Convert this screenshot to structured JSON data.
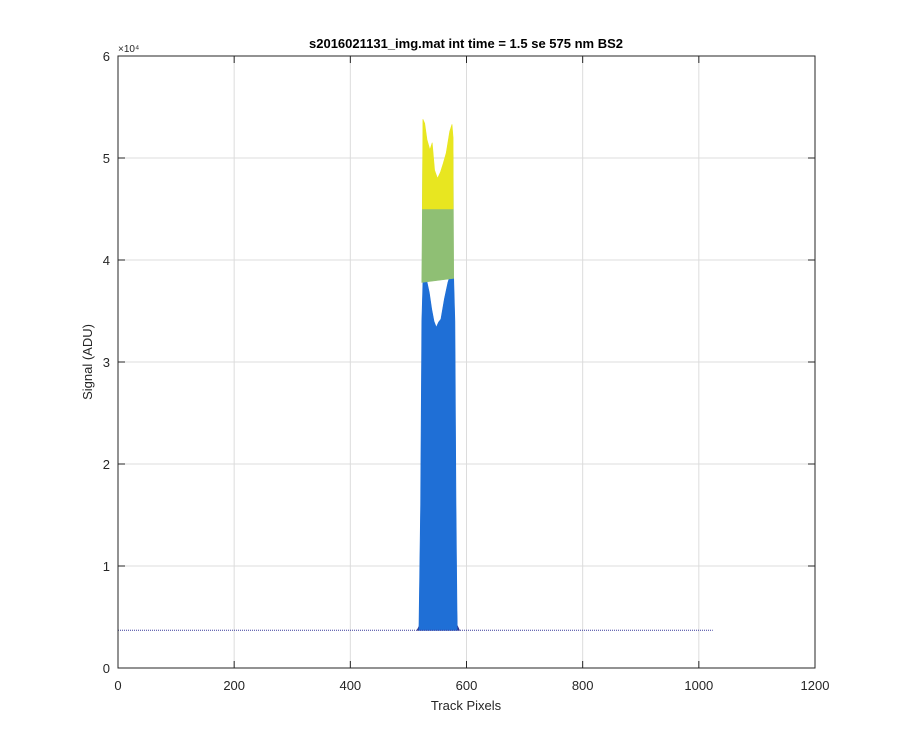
{
  "chart_data": {
    "type": "area",
    "title": "s2016021131_img.mat int time = 1.5 se  575 nm BS2",
    "xlabel": "Track Pixels",
    "ylabel": "Signal (ADU)",
    "y_exponent_label": "×10⁴",
    "xlim": [
      0,
      1200
    ],
    "ylim": [
      0,
      60000
    ],
    "xticks": [
      0,
      200,
      400,
      600,
      800,
      1000,
      1200
    ],
    "yticks": [
      0,
      1,
      2,
      3,
      4,
      5,
      6
    ],
    "ytick_scale": 10000,
    "grid": true,
    "baseline": {
      "value": 3700,
      "x_start": 0,
      "x_end": 1024,
      "color": "#3b3b9c"
    },
    "series": [
      {
        "color": "#2e2e86",
        "points": [
          [
            515,
            3700
          ],
          [
            519,
            4200
          ],
          [
            521,
            10500
          ],
          [
            524,
            11300
          ],
          [
            530,
            10800
          ],
          [
            537,
            9800
          ],
          [
            543,
            9600
          ],
          [
            547,
            9200
          ],
          [
            551,
            8700
          ],
          [
            556,
            9300
          ],
          [
            563,
            9800
          ],
          [
            570,
            10700
          ],
          [
            576,
            11400
          ],
          [
            580,
            11000
          ],
          [
            584,
            4200
          ],
          [
            588,
            3700
          ]
        ]
      },
      {
        "color": "#1f6fd6",
        "points": [
          [
            518,
            3700
          ],
          [
            521,
            16000
          ],
          [
            523,
            34000
          ],
          [
            525,
            37800
          ],
          [
            530,
            38400
          ],
          [
            536,
            36800
          ],
          [
            540,
            35200
          ],
          [
            544,
            34000
          ],
          [
            548,
            33400
          ],
          [
            552,
            33900
          ],
          [
            556,
            34200
          ],
          [
            562,
            36200
          ],
          [
            568,
            37800
          ],
          [
            574,
            38900
          ],
          [
            578,
            38200
          ],
          [
            580,
            34000
          ],
          [
            582,
            16000
          ],
          [
            584,
            3700
          ]
        ]
      },
      {
        "color": "#8fbf74",
        "points": [
          [
            523,
            37800
          ],
          [
            525,
            51500
          ],
          [
            529,
            51000
          ],
          [
            533,
            49000
          ],
          [
            538,
            47500
          ],
          [
            543,
            47200
          ],
          [
            548,
            47800
          ],
          [
            553,
            46800
          ],
          [
            558,
            48200
          ],
          [
            563,
            49500
          ],
          [
            569,
            50800
          ],
          [
            574,
            51800
          ],
          [
            577,
            50200
          ],
          [
            578,
            38200
          ]
        ]
      },
      {
        "color": "#e8e620",
        "points": [
          [
            524,
            45000
          ],
          [
            525,
            53800
          ],
          [
            528,
            53400
          ],
          [
            532,
            51800
          ],
          [
            537,
            50800
          ],
          [
            541,
            51500
          ],
          [
            545,
            48800
          ],
          [
            550,
            48000
          ],
          [
            555,
            48600
          ],
          [
            560,
            49500
          ],
          [
            565,
            50500
          ],
          [
            571,
            52600
          ],
          [
            575,
            53300
          ],
          [
            577,
            52000
          ],
          [
            577,
            45000
          ]
        ]
      }
    ]
  }
}
